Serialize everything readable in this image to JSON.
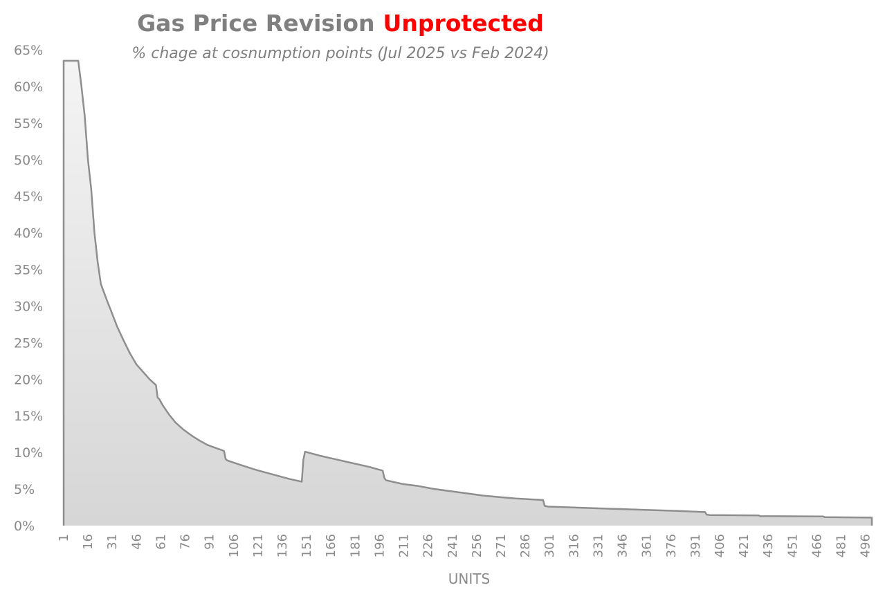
{
  "chart_data": {
    "type": "area",
    "title": "Gas Price Revision",
    "title_highlight": "Unprotected",
    "subtitle": "% chage at cosnumption points (Jul 2025 vs Feb 2024)",
    "xlabel": "UNITS",
    "ylabel": "",
    "xlim": [
      1,
      500
    ],
    "ylim": [
      0,
      65
    ],
    "y_ticks": [
      "0%",
      "5%",
      "10%",
      "15%",
      "20%",
      "25%",
      "30%",
      "35%",
      "40%",
      "45%",
      "50%",
      "55%",
      "60%",
      "65%"
    ],
    "x_ticks": [
      "1",
      "16",
      "31",
      "46",
      "61",
      "76",
      "91",
      "106",
      "121",
      "136",
      "151",
      "166",
      "181",
      "196",
      "211",
      "226",
      "241",
      "256",
      "271",
      "286",
      "301",
      "316",
      "331",
      "346",
      "361",
      "376",
      "391",
      "406",
      "421",
      "436",
      "451",
      "466",
      "481",
      "496"
    ],
    "grid": false,
    "legend": "none",
    "series": [
      {
        "x": [
          1,
          9,
          10,
          12,
          14,
          16,
          18,
          20,
          22,
          24,
          26,
          28,
          30,
          34,
          38,
          42,
          46,
          50,
          54,
          58,
          59,
          60,
          62,
          66,
          70,
          75,
          80,
          85,
          90,
          95,
          100,
          101,
          102,
          110,
          120,
          130,
          140,
          148,
          149,
          150,
          160,
          170,
          180,
          190,
          198,
          199,
          200,
          210,
          220,
          230,
          240,
          250,
          260,
          270,
          280,
          297,
          298,
          300,
          320,
          340,
          360,
          380,
          397,
          398,
          400,
          430,
          431,
          470,
          471,
          500
        ],
        "y": [
          63.5,
          63.5,
          63.5,
          60,
          56,
          50,
          46,
          40,
          36,
          33,
          31.8,
          30.6,
          29.5,
          27.2,
          25.3,
          23.5,
          22,
          21,
          20,
          19.2,
          17.5,
          17.3,
          16.5,
          15.2,
          14.1,
          13.1,
          12.3,
          11.6,
          11.0,
          10.6,
          10.2,
          9.1,
          8.9,
          8.3,
          7.6,
          7.0,
          6.4,
          6.0,
          9.0,
          10.1,
          9.5,
          9.0,
          8.5,
          8.0,
          7.5,
          6.5,
          6.2,
          5.7,
          5.4,
          5.0,
          4.7,
          4.4,
          4.1,
          3.9,
          3.7,
          3.5,
          2.7,
          2.6,
          2.45,
          2.3,
          2.15,
          2.0,
          1.85,
          1.5,
          1.45,
          1.4,
          1.3,
          1.25,
          1.15,
          1.1
        ],
        "fill_top": "#f4f4f4",
        "fill_bottom": "#d6d6d6",
        "stroke": "#8e8e8e"
      }
    ],
    "colors": {
      "title": "#7f7f7f",
      "highlight": "#ff0000",
      "subtitle": "#7f7f7f",
      "axis_text": "#8a8a8a"
    }
  }
}
